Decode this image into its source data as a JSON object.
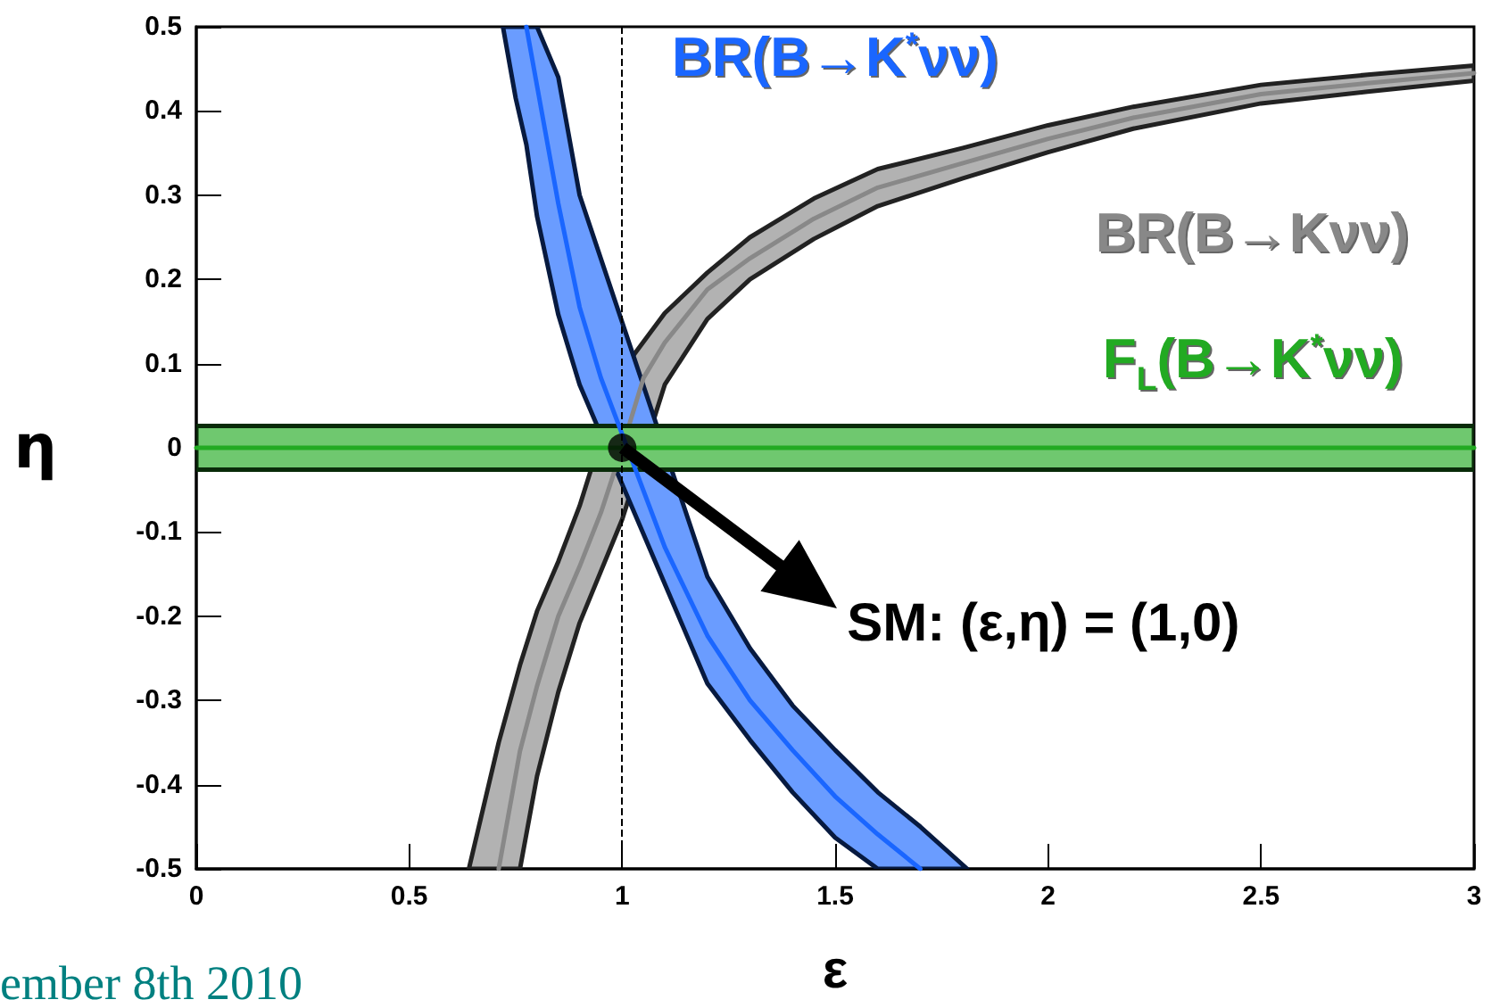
{
  "chart_data": {
    "type": "line",
    "xlabel": "ε",
    "ylabel": "η",
    "xlim": [
      0,
      3
    ],
    "xticks": [
      0,
      0.5,
      1,
      1.5,
      2,
      2.5,
      3
    ],
    "ylim": [
      -0.5,
      0.5
    ],
    "yticks": [
      -0.5,
      -0.4,
      -0.3,
      -0.2,
      -0.1,
      0,
      0.1,
      0.2,
      0.3,
      0.4,
      0.5
    ],
    "marker": "none",
    "line_style": "solid",
    "series": [
      {
        "name": "BR(B→Kνν)",
        "color": "#888888",
        "x": [
          0.64,
          0.71,
          0.76,
          0.8,
          0.85,
          0.9,
          0.95,
          1.0,
          1.05,
          1.1,
          1.2,
          1.3,
          1.45,
          1.6,
          1.8,
          2.0,
          2.2,
          2.5,
          2.75,
          3.0
        ],
        "values": [
          null,
          -0.5,
          -0.36,
          -0.283,
          -0.2,
          -0.141,
          -0.077,
          0,
          0.083,
          0.125,
          0.188,
          0.225,
          0.272,
          0.309,
          0.338,
          0.367,
          0.392,
          0.42,
          0.433,
          0.445
        ],
        "lower": [
          -0.5,
          -0.5,
          -0.5,
          -0.39,
          -0.29,
          -0.208,
          null,
          -0.085,
          null,
          0.075,
          0.153,
          0.2,
          0.248,
          0.287,
          0.32,
          0.351,
          0.379,
          0.409,
          0.423,
          0.436
        ],
        "upper": [
          -0.5,
          -0.35,
          -0.258,
          -0.194,
          -0.135,
          -0.069,
          null,
          0.092,
          null,
          0.16,
          0.208,
          0.25,
          0.296,
          0.331,
          0.356,
          0.383,
          0.405,
          0.431,
          0.443,
          0.454
        ]
      },
      {
        "name": "BR(B→K$^{*}$νν)",
        "color": "#1a66ff",
        "x": [
          0.72,
          0.75,
          0.775,
          0.8,
          0.85,
          0.9,
          0.95,
          1.1,
          1.2,
          1.3,
          1.4,
          1.5,
          1.6,
          1.7,
          1.81
        ],
        "values": [
          null,
          null,
          0.5,
          0.43,
          0.29,
          0.167,
          0.083,
          -0.118,
          -0.223,
          -0.3,
          -0.359,
          -0.414,
          -0.459,
          -0.5,
          null
        ],
        "lower": [
          0.5,
          0.415,
          0.36,
          0.275,
          0.158,
          0.075,
          null,
          null,
          -0.28,
          -0.347,
          -0.409,
          -0.463,
          -0.5,
          -0.5,
          -0.5
        ],
        "upper": [
          0.5,
          0.5,
          0.5,
          0.5,
          0.44,
          0.3,
          null,
          null,
          -0.153,
          -0.238,
          -0.306,
          -0.359,
          -0.409,
          -0.45,
          -0.5
        ]
      },
      {
        "name": "F$_{L}$(B→K$^{*}$νν)",
        "color": "#22aa22",
        "x": [
          0,
          3
        ],
        "values": [
          0,
          0
        ],
        "lower": [
          -0.026,
          -0.026
        ],
        "upper": [
          0.026,
          0.026
        ]
      },
      {
        "type": "scatter",
        "color": "#000000",
        "marker": "circle",
        "x": [
          1
        ],
        "values": [
          0
        ]
      }
    ],
    "ref_lines": [
      {
        "axis": "x",
        "value": 1,
        "line_style": "dashed",
        "color": "#000000"
      }
    ],
    "annotations": [
      "SM: (ε,η) = (1,0)",
      "ember 8th 2010"
    ]
  }
}
